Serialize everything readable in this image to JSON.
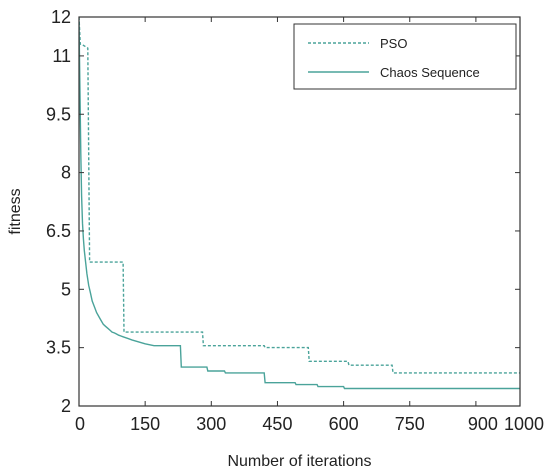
{
  "chart_data": {
    "type": "line",
    "xlabel": "Number of iterations",
    "ylabel": "fitness",
    "xlim": [
      0,
      1000
    ],
    "ylim": [
      2,
      12
    ],
    "xticks": [
      0,
      150,
      300,
      450,
      600,
      750,
      900,
      1000
    ],
    "xtick_labels": [
      "0",
      "150",
      "300",
      "450",
      "600",
      "750",
      "900",
      "1000"
    ],
    "yticks": [
      2,
      3.5,
      5,
      6.5,
      8,
      9.5,
      11,
      12
    ],
    "ytick_labels": [
      "2",
      "3.5",
      "5",
      "6.5",
      "8",
      "9.5",
      "11",
      "12"
    ],
    "grid": false,
    "legend_position": "top-right",
    "series": [
      {
        "name": "PSO",
        "style": "dashed",
        "color": "#4aa39a",
        "step": true,
        "x": [
          0,
          3,
          6,
          20,
          24,
          100,
          102,
          280,
          282,
          420,
          422,
          520,
          522,
          610,
          612,
          710,
          712,
          1000
        ],
        "y": [
          12,
          11.3,
          11.3,
          11.2,
          5.7,
          5.7,
          3.9,
          3.9,
          3.55,
          3.55,
          3.5,
          3.5,
          3.15,
          3.15,
          3.05,
          3.05,
          2.85,
          2.85
        ]
      },
      {
        "name": "Chaos Sequence",
        "style": "solid",
        "color": "#4aa39a",
        "step": false,
        "x": [
          0,
          2,
          4,
          6,
          8,
          10,
          12,
          15,
          18,
          22,
          26,
          30,
          35,
          40,
          45,
          50,
          55,
          60,
          65,
          70,
          75,
          80,
          85,
          90,
          95,
          100,
          120,
          150,
          170,
          230,
          232,
          290,
          292,
          330,
          332,
          420,
          422,
          490,
          492,
          540,
          542,
          600,
          602,
          1000
        ],
        "y": [
          11.9,
          10.2,
          8.5,
          7.4,
          6.7,
          6.3,
          6.0,
          5.7,
          5.4,
          5.1,
          4.9,
          4.7,
          4.55,
          4.4,
          4.3,
          4.2,
          4.1,
          4.05,
          4.0,
          3.95,
          3.9,
          3.88,
          3.85,
          3.82,
          3.8,
          3.78,
          3.7,
          3.6,
          3.55,
          3.55,
          3.0,
          3.0,
          2.9,
          2.9,
          2.85,
          2.85,
          2.6,
          2.6,
          2.55,
          2.55,
          2.5,
          2.5,
          2.45,
          2.45
        ]
      }
    ]
  }
}
